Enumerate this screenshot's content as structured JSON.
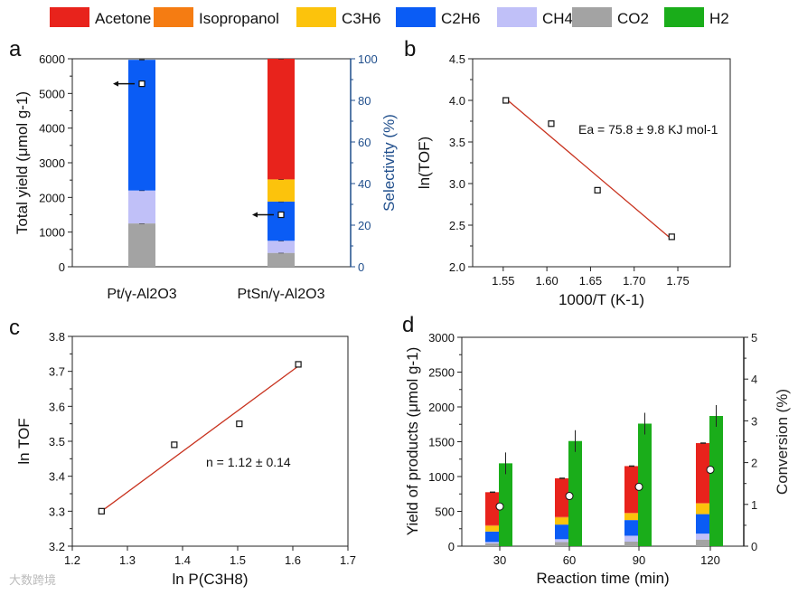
{
  "legend": [
    {
      "name": "Acetone",
      "color": "#e8231c"
    },
    {
      "name": "Isopropanol",
      "color": "#f57c12"
    },
    {
      "name": "C3H6",
      "color": "#fcc30c"
    },
    {
      "name": "C2H6",
      "color": "#0a5cf5"
    },
    {
      "name": "CH4",
      "color": "#c0c0f8"
    },
    {
      "name": "CO2",
      "color": "#a3a3a3"
    },
    {
      "name": "H2",
      "color": "#1aad1a"
    }
  ],
  "chart_data": [
    {
      "panel": "a",
      "type": "bar",
      "stacked": true,
      "categories": [
        "Pt/γ-Al2O3",
        "PtSn/γ-Al2O3"
      ],
      "ylabel": "Total yield (μmol g-1)",
      "ylim": [
        0,
        6000
      ],
      "yticks": [
        0,
        1000,
        2000,
        3000,
        4000,
        5000,
        6000
      ],
      "y2label": "Selectivity (%)",
      "y2lim": [
        0,
        100
      ],
      "y2ticks": [
        0,
        20,
        40,
        60,
        80,
        100
      ],
      "series": [
        {
          "name": "CO2",
          "values": [
            1250,
            400
          ]
        },
        {
          "name": "CH4",
          "values": [
            950,
            350
          ]
        },
        {
          "name": "C2H6",
          "values": [
            3770,
            1130
          ]
        },
        {
          "name": "C3H6",
          "values": [
            0,
            640
          ]
        },
        {
          "name": "Isopropanol",
          "values": [
            0,
            0
          ]
        },
        {
          "name": "Acetone",
          "values": [
            0,
            3480
          ]
        }
      ],
      "selectivity": [
        88,
        25
      ]
    },
    {
      "panel": "b",
      "type": "scatter",
      "xlabel": "1000/T (K-1)",
      "ylabel": "ln(TOF)",
      "xlim": [
        1.515,
        1.81
      ],
      "ylim": [
        2.0,
        4.5
      ],
      "xticks": [
        1.55,
        1.6,
        1.65,
        1.7,
        1.75
      ],
      "yticks": [
        2.0,
        2.5,
        3.0,
        3.5,
        4.0,
        4.5
      ],
      "x": [
        1.553,
        1.605,
        1.658,
        1.743
      ],
      "y": [
        4.0,
        3.72,
        2.92,
        2.36
      ],
      "fit": {
        "x": [
          1.553,
          1.743
        ],
        "y": [
          4.02,
          2.33
        ]
      },
      "annotation": "Ea = 75.8 ± 9.8 KJ mol-1"
    },
    {
      "panel": "c",
      "type": "scatter",
      "xlabel": "ln P(C3H8)",
      "ylabel": "ln TOF",
      "xlim": [
        1.2,
        1.7
      ],
      "ylim": [
        3.2,
        3.8
      ],
      "xticks": [
        1.2,
        1.3,
        1.4,
        1.5,
        1.6,
        1.7
      ],
      "yticks": [
        3.2,
        3.3,
        3.4,
        3.5,
        3.6,
        3.7,
        3.8
      ],
      "x": [
        1.253,
        1.385,
        1.503,
        1.61
      ],
      "y": [
        3.3,
        3.49,
        3.55,
        3.72
      ],
      "fit": {
        "x": [
          1.253,
          1.61
        ],
        "y": [
          3.3,
          3.715
        ]
      },
      "annotation": "n = 1.12 ± 0.14"
    },
    {
      "panel": "d",
      "type": "bar",
      "stacked": true,
      "xlabel": "Reaction time (min)",
      "ylabel": "Yield of products (μmol g-1)",
      "categories": [
        "30",
        "60",
        "90",
        "120"
      ],
      "ylim": [
        0,
        3000
      ],
      "yticks": [
        0,
        500,
        1000,
        1500,
        2000,
        2500,
        3000
      ],
      "y2label": "Conversion (%)",
      "y2lim": [
        0,
        5
      ],
      "y2ticks": [
        0,
        1,
        2,
        3,
        4,
        5
      ],
      "series": [
        {
          "name": "CO2",
          "values": [
            40,
            60,
            65,
            95
          ]
        },
        {
          "name": "CH4",
          "values": [
            20,
            40,
            85,
            85
          ]
        },
        {
          "name": "C2H6",
          "values": [
            150,
            210,
            225,
            280
          ]
        },
        {
          "name": "C3H6",
          "values": [
            80,
            100,
            95,
            150
          ]
        },
        {
          "name": "Isopropanol",
          "values": [
            10,
            10,
            10,
            10
          ]
        },
        {
          "name": "Acetone",
          "values": [
            475,
            555,
            670,
            860
          ]
        }
      ],
      "h2": [
        1190,
        1510,
        1760,
        1870
      ],
      "conversion": [
        0.95,
        1.2,
        1.42,
        1.83
      ]
    }
  ],
  "labels": {
    "a": "a",
    "b": "b",
    "c": "c",
    "d": "d"
  },
  "watermark": "大数跨境"
}
